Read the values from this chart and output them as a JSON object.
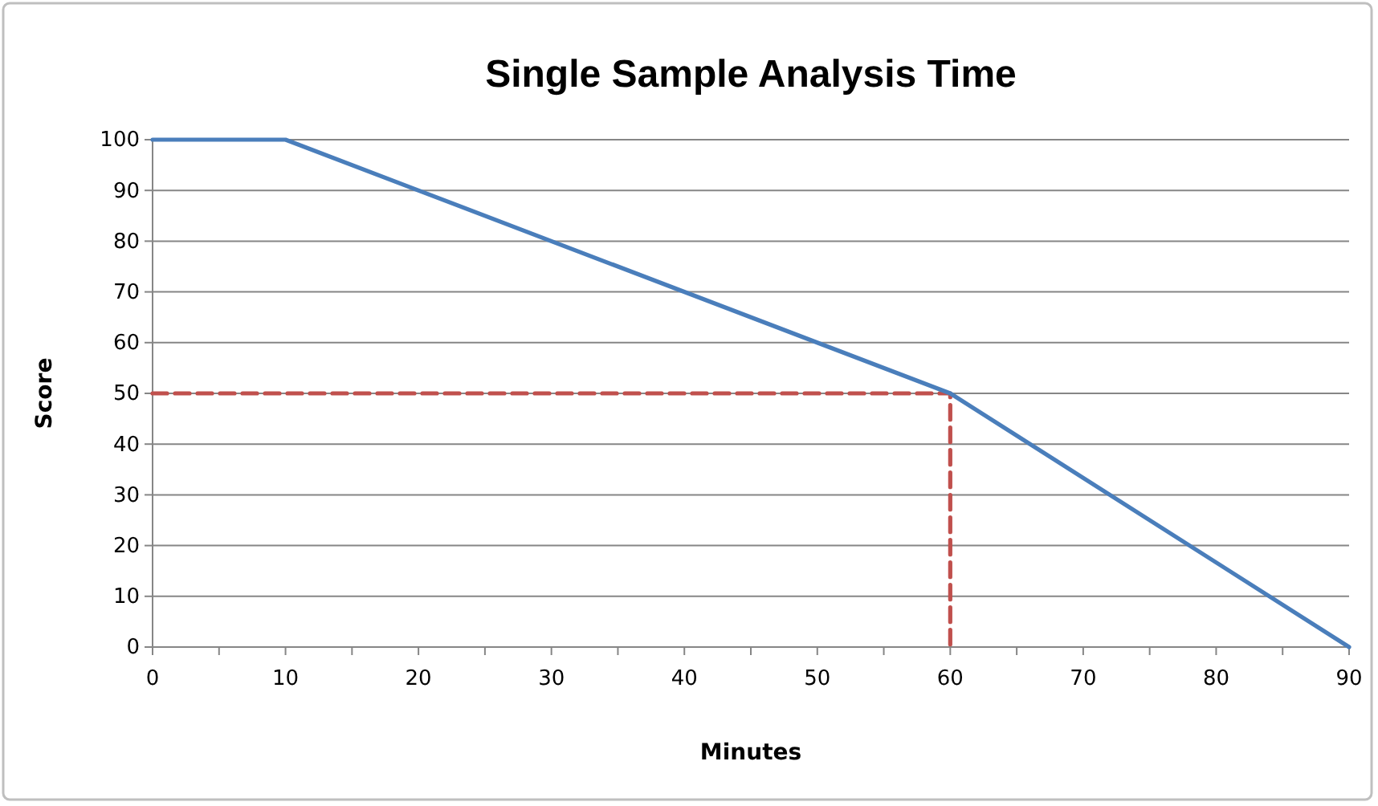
{
  "chart_data": {
    "type": "line",
    "title": "Single Sample Analysis Time",
    "xlabel": "Minutes",
    "ylabel": "Score",
    "xlim": [
      0,
      90
    ],
    "xticks": [
      0,
      {
        "value": 5,
        "label": null
      },
      10,
      {
        "value": 15,
        "label": null
      },
      20,
      {
        "value": 25,
        "label": null
      },
      30,
      {
        "value": 35,
        "label": null
      },
      40,
      {
        "value": 45,
        "label": null
      },
      50,
      {
        "value": 55,
        "label": null
      },
      60,
      {
        "value": 65,
        "label": null
      },
      70,
      {
        "value": 75,
        "label": null
      },
      80,
      {
        "value": 85,
        "label": null
      },
      90
    ],
    "ylim": [
      0,
      100
    ],
    "yticks": [
      0,
      10,
      20,
      30,
      40,
      50,
      60,
      70,
      80,
      90,
      100
    ],
    "grid": "y",
    "marker": "none",
    "series": [
      {
        "color": "#4a7ebb",
        "x": [
          0,
          10,
          60,
          90
        ],
        "values": [
          100,
          100,
          50,
          0
        ],
        "line_style": "solid"
      },
      {
        "color": "#c0504d",
        "x": [
          0,
          60,
          60
        ],
        "values": [
          50,
          50,
          0
        ],
        "line_style": "dashed"
      }
    ]
  }
}
